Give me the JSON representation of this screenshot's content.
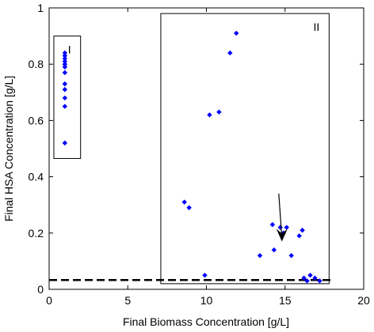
{
  "chart_data": {
    "type": "scatter",
    "xlabel": "Final Biomass Concentration [g/L]",
    "ylabel": "Final HSA Concentration [g/L]",
    "xlim": [
      0,
      20
    ],
    "ylim": [
      0,
      1
    ],
    "xticks": [
      0,
      5,
      10,
      15,
      20
    ],
    "yticks": [
      0,
      0.2,
      0.4,
      0.6,
      0.8,
      1
    ],
    "xtick_labels": [
      "0",
      "5",
      "10",
      "15",
      "20"
    ],
    "ytick_labels": [
      "0",
      "0.2",
      "0.4",
      "0.6",
      "0.8",
      "1"
    ],
    "marker_color": "#0000ff",
    "series": [
      {
        "points": [
          [
            1.0,
            0.84
          ],
          [
            1.0,
            0.83
          ],
          [
            1.0,
            0.82
          ],
          [
            1.0,
            0.81
          ],
          [
            1.0,
            0.8
          ],
          [
            1.0,
            0.8
          ],
          [
            1.0,
            0.79
          ],
          [
            1.0,
            0.77
          ],
          [
            1.0,
            0.73
          ],
          [
            1.0,
            0.71
          ],
          [
            1.0,
            0.68
          ],
          [
            1.0,
            0.65
          ],
          [
            1.0,
            0.52
          ],
          [
            11.9,
            0.91
          ],
          [
            11.5,
            0.84
          ],
          [
            10.8,
            0.63
          ],
          [
            10.2,
            0.62
          ],
          [
            8.6,
            0.31
          ],
          [
            8.9,
            0.29
          ],
          [
            14.2,
            0.23
          ],
          [
            14.7,
            0.22
          ],
          [
            14.9,
            0.2
          ],
          [
            15.1,
            0.22
          ],
          [
            16.1,
            0.21
          ],
          [
            15.9,
            0.19
          ],
          [
            14.3,
            0.14
          ],
          [
            15.4,
            0.12
          ],
          [
            13.4,
            0.12
          ],
          [
            9.9,
            0.05
          ],
          [
            16.2,
            0.04
          ],
          [
            16.6,
            0.05
          ],
          [
            16.9,
            0.04
          ],
          [
            17.2,
            0.03
          ],
          [
            16.4,
            0.03
          ]
        ]
      }
    ],
    "reference_line": {
      "y": 0.033,
      "style": "dashed",
      "x_range": [
        0,
        18
      ]
    },
    "regions": [
      {
        "label": "I",
        "x_range": [
          0.3,
          2.0
        ],
        "y_range": [
          0.465,
          0.9
        ]
      },
      {
        "label": "II",
        "x_range": [
          7.1,
          17.8
        ],
        "y_range": [
          0.02,
          0.98
        ]
      }
    ],
    "annotation_arrow": {
      "from": [
        14.6,
        0.34
      ],
      "to": [
        14.8,
        0.17
      ]
    }
  }
}
